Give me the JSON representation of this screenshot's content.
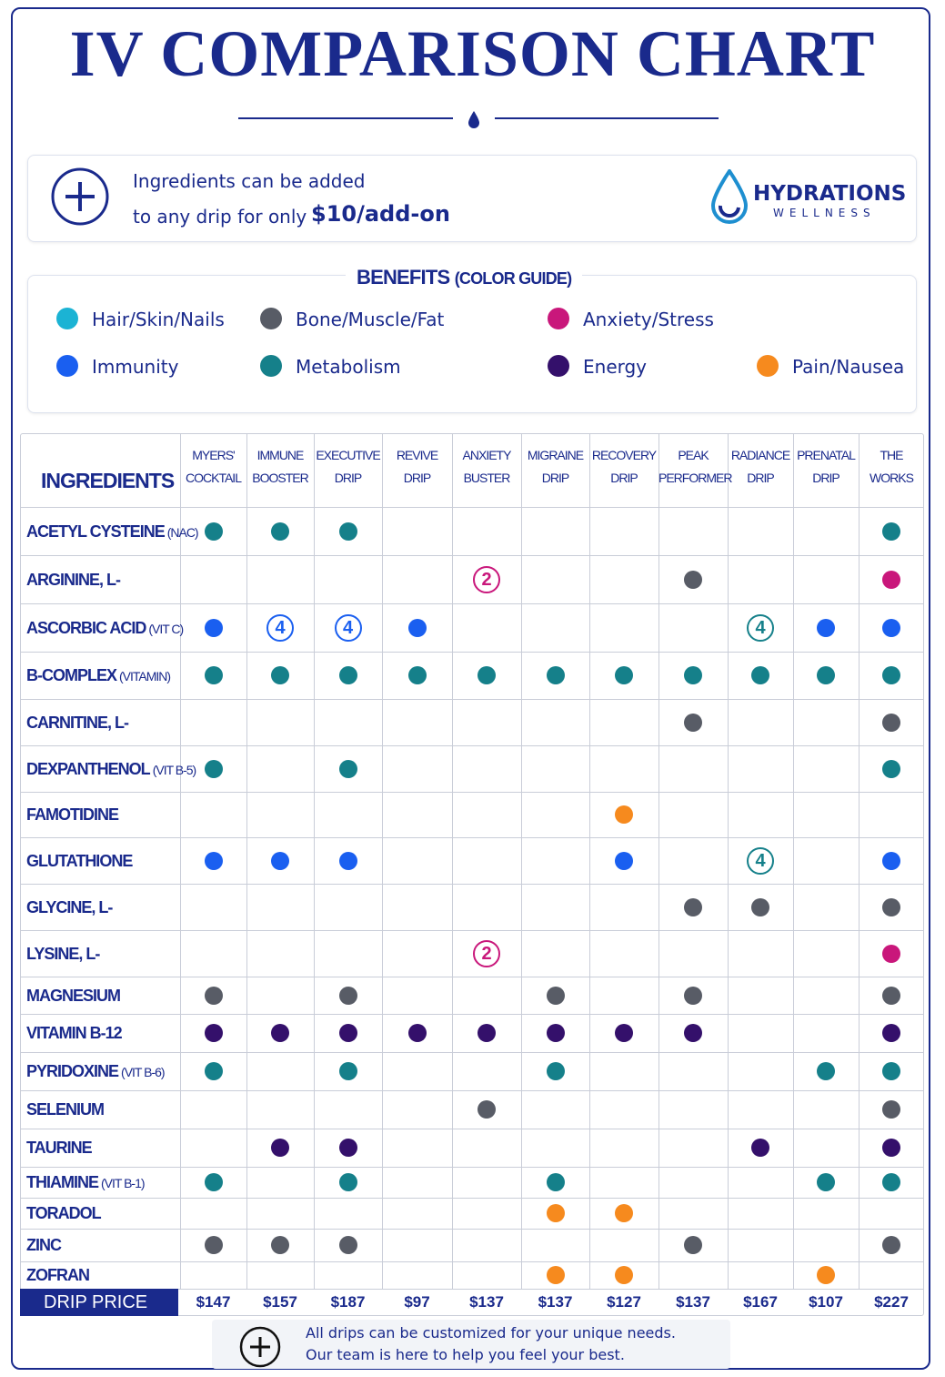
{
  "header": {
    "title": "IV COMPARISON CHART"
  },
  "addon": {
    "line1": "Ingredients can be added",
    "line2": "to any drip for only",
    "price": "$10/add-on"
  },
  "logo": {
    "name": "HYDRATIONS",
    "tagline": "WELLNESS"
  },
  "benefits": {
    "title": "BENEFITS",
    "subtitle": "(COLOR GUIDE)",
    "items": [
      {
        "name": "Hair/Skin/Nails",
        "color": "#1bb3d4"
      },
      {
        "name": "Bone/Muscle/Fat",
        "color": "#585c66"
      },
      {
        "name": "Anxiety/Stress",
        "color": "#c9177b"
      },
      {
        "name": "Immunity",
        "color": "#1a5ff0"
      },
      {
        "name": "Metabolism",
        "color": "#15808a"
      },
      {
        "name": "Energy",
        "color": "#34106b"
      },
      {
        "name": "Pain/Nausea",
        "color": "#f68a1e"
      }
    ]
  },
  "table": {
    "heading": "INGREDIENTS",
    "columns": [
      [
        "MYERS'",
        "COCKTAIL"
      ],
      [
        "IMMUNE",
        "BOOSTER"
      ],
      [
        "EXECUTIVE",
        "DRIP"
      ],
      [
        "REVIVE",
        "DRIP"
      ],
      [
        "ANXIETY",
        "BUSTER"
      ],
      [
        "MIGRAINE",
        "DRIP"
      ],
      [
        "RECOVERY",
        "DRIP"
      ],
      [
        "PEAK",
        "PERFORMER"
      ],
      [
        "RADIANCE",
        "DRIP"
      ],
      [
        "PRENATAL",
        "DRIP"
      ],
      [
        "THE",
        "WORKS"
      ]
    ],
    "rows": [
      {
        "name": "ACETYL CYSTEINE",
        "note": "(NAC)",
        "cells": [
          4,
          4,
          4,
          null,
          null,
          null,
          null,
          null,
          null,
          null,
          4
        ]
      },
      {
        "name": "ARGININE, L-",
        "cells": [
          null,
          null,
          null,
          null,
          {
            "benefit": 2,
            "label": "2"
          },
          null,
          null,
          1,
          null,
          null,
          2
        ]
      },
      {
        "name": "ASCORBIC ACID",
        "note": "(VIT C)",
        "cells": [
          3,
          {
            "benefit": 3,
            "label": "4"
          },
          {
            "benefit": 3,
            "label": "4"
          },
          3,
          null,
          null,
          null,
          null,
          {
            "benefit": 4,
            "label": "4"
          },
          3,
          3
        ]
      },
      {
        "name": "B-COMPLEX",
        "note": "(VITAMIN)",
        "cells": [
          4,
          4,
          4,
          4,
          4,
          4,
          4,
          4,
          4,
          4,
          4
        ]
      },
      {
        "name": "CARNITINE, L-",
        "cells": [
          null,
          null,
          null,
          null,
          null,
          null,
          null,
          1,
          null,
          null,
          1
        ]
      },
      {
        "name": "DEXPANTHENOL",
        "note": "(VIT B-5)",
        "cells": [
          4,
          null,
          4,
          null,
          null,
          null,
          null,
          null,
          null,
          null,
          4
        ]
      },
      {
        "name": "FAMOTIDINE",
        "cells": [
          null,
          null,
          null,
          null,
          null,
          null,
          6,
          null,
          null,
          null,
          null
        ]
      },
      {
        "name": "GLUTATHIONE",
        "cells": [
          3,
          3,
          3,
          null,
          null,
          null,
          3,
          null,
          {
            "benefit": 4,
            "label": "4"
          },
          null,
          3
        ]
      },
      {
        "name": "GLYCINE, L-",
        "cells": [
          null,
          null,
          null,
          null,
          null,
          null,
          null,
          1,
          1,
          null,
          1
        ]
      },
      {
        "name": "LYSINE, L-",
        "cells": [
          null,
          null,
          null,
          null,
          {
            "benefit": 2,
            "label": "2"
          },
          null,
          null,
          null,
          null,
          null,
          2
        ]
      },
      {
        "name": "MAGNESIUM",
        "cells": [
          1,
          null,
          1,
          null,
          null,
          1,
          null,
          1,
          null,
          null,
          1
        ]
      },
      {
        "name": "VITAMIN B-12",
        "cells": [
          5,
          5,
          5,
          5,
          5,
          5,
          5,
          5,
          null,
          null,
          5
        ]
      },
      {
        "name": "PYRIDOXINE",
        "note": "(VIT B-6)",
        "cells": [
          4,
          null,
          4,
          null,
          null,
          4,
          null,
          null,
          null,
          4,
          4
        ]
      },
      {
        "name": "SELENIUM",
        "cells": [
          null,
          null,
          null,
          null,
          1,
          null,
          null,
          null,
          null,
          null,
          1
        ]
      },
      {
        "name": "TAURINE",
        "cells": [
          null,
          5,
          5,
          null,
          null,
          null,
          null,
          null,
          5,
          null,
          5
        ]
      },
      {
        "name": "THIAMINE",
        "note": "(VIT B-1)",
        "cells": [
          4,
          null,
          4,
          null,
          null,
          4,
          null,
          null,
          null,
          4,
          4
        ]
      },
      {
        "name": "TORADOL",
        "cells": [
          null,
          null,
          null,
          null,
          null,
          6,
          6,
          null,
          null,
          null,
          null
        ]
      },
      {
        "name": "ZINC",
        "cells": [
          1,
          1,
          1,
          null,
          null,
          null,
          null,
          1,
          null,
          null,
          1
        ]
      },
      {
        "name": "ZOFRAN",
        "cells": [
          null,
          null,
          null,
          null,
          null,
          6,
          6,
          null,
          null,
          6,
          null
        ]
      }
    ],
    "price_label": "DRIP PRICE",
    "prices": [
      "$147",
      "$157",
      "$187",
      "$97",
      "$137",
      "$137",
      "$127",
      "$137",
      "$167",
      "$107",
      "$227"
    ]
  },
  "footer": {
    "line1": "All drips can be customized for your unique needs.",
    "line2": "Our team is here to help you feel your best."
  }
}
